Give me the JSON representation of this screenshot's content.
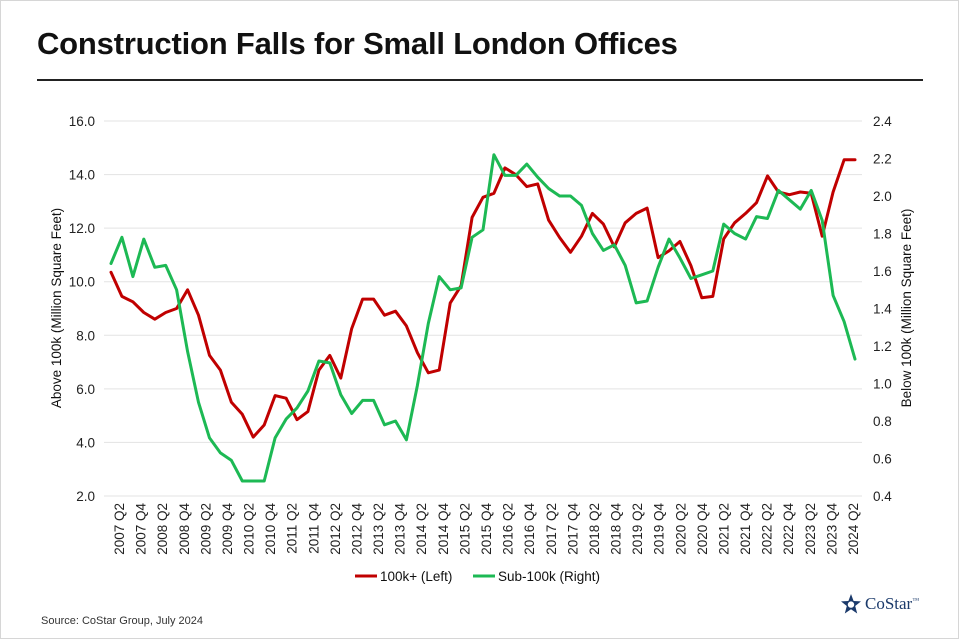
{
  "title": "Construction Falls for Small London Offices",
  "source": "Source: CoStar Group, July 2024",
  "logo": {
    "text": "CoStar",
    "mark": "™"
  },
  "colors": {
    "series1": "#c00000",
    "series2": "#1db954",
    "grid": "#e3e3e3",
    "brand": "#1b3a6b"
  },
  "chart_data": {
    "type": "line",
    "title": "Construction Falls for Small London Offices",
    "ylabel": "Above 100k (Million Square Feet)",
    "y2label": "Below 100k (Million Square Feet)",
    "ylim": [
      2.0,
      16.0
    ],
    "yticks": [
      "2.0",
      "4.0",
      "6.0",
      "8.0",
      "10.0",
      "12.0",
      "14.0",
      "16.0"
    ],
    "y2lim": [
      0.4,
      2.4
    ],
    "y2ticks": [
      "0.4",
      "0.6",
      "0.8",
      "1.0",
      "1.2",
      "1.4",
      "1.6",
      "1.8",
      "2.0",
      "2.2",
      "2.4"
    ],
    "grid": true,
    "legend": "bottom-center",
    "xtick_labels": [
      "2007 Q2",
      "2007 Q4",
      "2008 Q2",
      "2008 Q4",
      "2009 Q2",
      "2009 Q4",
      "2010 Q2",
      "2010 Q4",
      "2011 Q2",
      "2011 Q4",
      "2012 Q2",
      "2012 Q4",
      "2013 Q2",
      "2013 Q4",
      "2014 Q2",
      "2014 Q4",
      "2015 Q2",
      "2015 Q4",
      "2016 Q2",
      "2016 Q4",
      "2017 Q2",
      "2017 Q4",
      "2018 Q2",
      "2018 Q4",
      "2019 Q2",
      "2019 Q4",
      "2020 Q2",
      "2020 Q4",
      "2021 Q2",
      "2021 Q4",
      "2022 Q2",
      "2022 Q4",
      "2023 Q2",
      "2023 Q4",
      "2024 Q2"
    ],
    "series": [
      {
        "name": "100k+ (Left)",
        "axis": "left",
        "color": "#c00000",
        "values": [
          10.35,
          9.45,
          9.25,
          8.85,
          8.6,
          8.85,
          9.0,
          9.7,
          8.75,
          7.25,
          6.7,
          5.5,
          5.05,
          4.2,
          4.65,
          5.75,
          5.65,
          4.85,
          5.15,
          6.7,
          7.25,
          6.4,
          8.25,
          9.35,
          9.35,
          8.75,
          8.9,
          8.35,
          7.35,
          6.6,
          6.7,
          9.2,
          9.85,
          12.4,
          13.15,
          13.3,
          14.25,
          14.0,
          13.55,
          13.65,
          12.3,
          11.65,
          11.1,
          11.7,
          12.55,
          12.15,
          11.3,
          12.2,
          12.55,
          12.75,
          10.9,
          11.15,
          11.5,
          10.6,
          9.4,
          9.45,
          11.6,
          12.2,
          12.55,
          12.95,
          13.95,
          13.35,
          13.25,
          13.35,
          13.3,
          11.7,
          13.35,
          14.55,
          14.55
        ]
      },
      {
        "name": "Sub-100k (Right)",
        "axis": "right",
        "color": "#1db954",
        "values": [
          1.64,
          1.78,
          1.57,
          1.77,
          1.62,
          1.63,
          1.5,
          1.17,
          0.9,
          0.71,
          0.63,
          0.59,
          0.48,
          0.48,
          0.48,
          0.71,
          0.81,
          0.87,
          0.96,
          1.12,
          1.11,
          0.94,
          0.84,
          0.91,
          0.91,
          0.78,
          0.8,
          0.7,
          0.99,
          1.32,
          1.57,
          1.5,
          1.51,
          1.78,
          1.82,
          2.22,
          2.11,
          2.11,
          2.17,
          2.1,
          2.04,
          2.0,
          2.0,
          1.95,
          1.8,
          1.71,
          1.74,
          1.63,
          1.43,
          1.44,
          1.62,
          1.77,
          1.67,
          1.56,
          1.58,
          1.6,
          1.85,
          1.8,
          1.77,
          1.89,
          1.88,
          2.03,
          1.98,
          1.93,
          2.03,
          1.87,
          1.47,
          1.33,
          1.13
        ]
      }
    ]
  }
}
